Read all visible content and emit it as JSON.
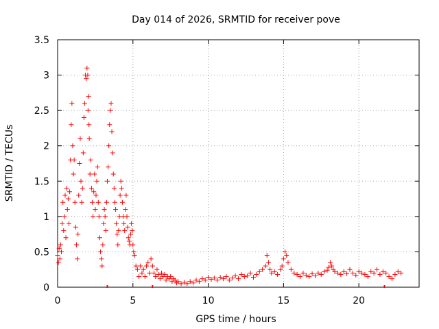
{
  "chart_data": {
    "type": "scatter",
    "title": "Day 014 of 2026, SRMTID for receiver pove",
    "xlabel": "GPS time / hours",
    "ylabel": "SRMTID / TECUs",
    "xlim": [
      0,
      24
    ],
    "ylim": [
      0,
      3.5
    ],
    "xticks": [
      0,
      5,
      10,
      15,
      20
    ],
    "xtick_labels": [
      "0",
      "5",
      "10",
      "15",
      "20"
    ],
    "yticks": [
      0,
      0.5,
      1,
      1.5,
      2,
      2.5,
      3,
      3.5
    ],
    "ytick_labels": [
      "0",
      "0.5",
      "1",
      "1.5",
      "2",
      "2.5",
      "3",
      "3.5"
    ],
    "grid": true,
    "marker": "+",
    "marker_color": "#ff0000",
    "series": [
      {
        "name": "SRMTID",
        "x": [
          0.0,
          0.05,
          0.1,
          0.15,
          0.2,
          0.25,
          0.3,
          0.35,
          0.4,
          0.45,
          0.5,
          0.55,
          0.6,
          0.65,
          0.7,
          0.75,
          0.8,
          0.85,
          0.9,
          0.95,
          1.0,
          1.05,
          1.1,
          1.15,
          1.2,
          1.25,
          1.3,
          1.35,
          1.4,
          1.45,
          1.5,
          1.55,
          1.6,
          1.65,
          1.7,
          1.75,
          1.8,
          1.85,
          1.9,
          1.95,
          2.0,
          2.02,
          2.05,
          2.08,
          2.1,
          2.15,
          2.2,
          2.25,
          2.3,
          2.35,
          2.4,
          2.45,
          2.5,
          2.55,
          2.6,
          2.65,
          2.7,
          2.75,
          2.8,
          2.85,
          2.9,
          2.95,
          3.0,
          3.05,
          3.1,
          3.15,
          3.2,
          3.25,
          3.3,
          3.35,
          3.4,
          3.45,
          3.5,
          3.55,
          3.6,
          3.65,
          3.7,
          3.75,
          3.8,
          3.85,
          3.9,
          3.95,
          4.0,
          4.05,
          4.1,
          4.15,
          4.2,
          4.25,
          4.3,
          4.35,
          4.4,
          4.45,
          4.5,
          4.55,
          4.6,
          4.65,
          4.7,
          4.75,
          4.8,
          4.85,
          4.9,
          4.95,
          5.0,
          5.05,
          5.1,
          5.2,
          5.3,
          5.4,
          5.5,
          5.6,
          5.7,
          5.8,
          5.9,
          6.0,
          6.1,
          6.2,
          6.3,
          6.4,
          6.5,
          6.6,
          6.7,
          6.8,
          6.9,
          7.0,
          7.1,
          7.2,
          7.3,
          7.4,
          7.5,
          7.6,
          7.7,
          7.8,
          7.9,
          8.0,
          8.2,
          8.4,
          8.6,
          8.8,
          9.0,
          9.2,
          9.4,
          9.6,
          9.8,
          10.0,
          10.2,
          10.4,
          10.6,
          10.8,
          11.0,
          11.2,
          11.4,
          11.6,
          11.8,
          12.0,
          12.2,
          12.4,
          12.6,
          12.8,
          13.0,
          13.2,
          13.4,
          13.6,
          13.8,
          13.9,
          14.0,
          14.1,
          14.2,
          14.4,
          14.6,
          14.8,
          14.9,
          15.0,
          15.1,
          15.2,
          15.3,
          15.5,
          15.7,
          15.9,
          16.1,
          16.3,
          16.5,
          16.7,
          16.9,
          17.1,
          17.3,
          17.5,
          17.7,
          17.9,
          18.0,
          18.1,
          18.2,
          18.3,
          18.4,
          18.6,
          18.8,
          19.0,
          19.2,
          19.4,
          19.6,
          19.8,
          20.0,
          20.2,
          20.4,
          20.6,
          20.8,
          21.0,
          21.2,
          21.4,
          21.6,
          21.8,
          22.0,
          22.2,
          22.4,
          22.6,
          22.8
        ],
        "y": [
          0.45,
          0.35,
          0.55,
          0.4,
          0.6,
          0.5,
          0.9,
          1.2,
          0.8,
          1.0,
          1.3,
          0.7,
          1.4,
          1.1,
          1.25,
          0.9,
          1.35,
          1.8,
          2.3,
          2.6,
          2.0,
          1.6,
          1.8,
          1.2,
          0.85,
          0.6,
          0.4,
          0.75,
          1.3,
          1.75,
          2.1,
          1.5,
          1.2,
          1.4,
          1.9,
          2.4,
          2.6,
          3.0,
          2.95,
          3.1,
          3.0,
          2.5,
          2.7,
          2.3,
          2.1,
          1.6,
          1.8,
          1.4,
          1.2,
          1.0,
          1.35,
          1.6,
          1.1,
          1.3,
          1.5,
          1.7,
          1.2,
          1.0,
          0.7,
          0.5,
          0.4,
          0.3,
          0.6,
          0.9,
          1.1,
          1.0,
          0.8,
          1.2,
          1.5,
          1.7,
          2.0,
          2.3,
          2.5,
          2.6,
          2.2,
          1.9,
          1.6,
          1.4,
          1.2,
          1.1,
          0.9,
          0.75,
          0.6,
          0.8,
          1.0,
          1.3,
          1.5,
          1.4,
          1.2,
          1.0,
          0.9,
          0.8,
          1.1,
          1.3,
          1.0,
          0.85,
          0.7,
          0.65,
          0.6,
          0.75,
          0.9,
          0.8,
          0.6,
          0.5,
          0.45,
          0.3,
          0.25,
          0.15,
          0.3,
          0.2,
          0.25,
          0.15,
          0.3,
          0.35,
          0.2,
          0.4,
          0.3,
          0.2,
          0.15,
          0.25,
          0.18,
          0.12,
          0.2,
          0.15,
          0.18,
          0.1,
          0.15,
          0.12,
          0.15,
          0.08,
          0.12,
          0.1,
          0.06,
          0.08,
          0.05,
          0.07,
          0.05,
          0.08,
          0.06,
          0.1,
          0.08,
          0.12,
          0.1,
          0.14,
          0.11,
          0.13,
          0.1,
          0.14,
          0.12,
          0.15,
          0.1,
          0.13,
          0.16,
          0.12,
          0.18,
          0.15,
          0.16,
          0.2,
          0.14,
          0.18,
          0.22,
          0.25,
          0.3,
          0.45,
          0.35,
          0.25,
          0.2,
          0.22,
          0.18,
          0.25,
          0.3,
          0.4,
          0.5,
          0.45,
          0.35,
          0.25,
          0.2,
          0.18,
          0.15,
          0.2,
          0.17,
          0.15,
          0.19,
          0.16,
          0.2,
          0.18,
          0.22,
          0.24,
          0.28,
          0.35,
          0.3,
          0.25,
          0.22,
          0.2,
          0.18,
          0.22,
          0.19,
          0.25,
          0.2,
          0.17,
          0.22,
          0.2,
          0.18,
          0.15,
          0.22,
          0.2,
          0.25,
          0.18,
          0.22,
          0.2,
          0.15,
          0.12,
          0.18,
          0.22,
          0.2
        ]
      }
    ],
    "axis_markers_x": [
      3.3,
      6.3,
      21.7
    ]
  }
}
